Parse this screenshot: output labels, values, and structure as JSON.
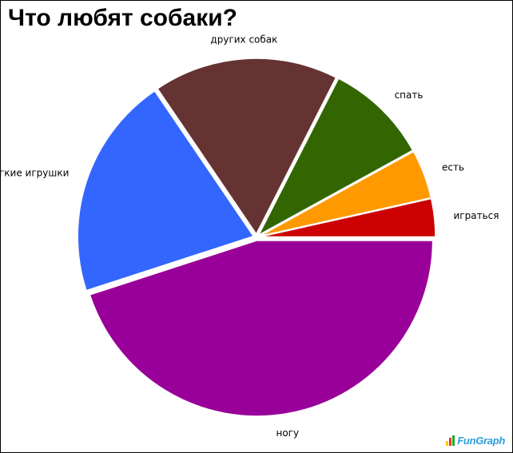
{
  "chart_data": {
    "type": "pie",
    "title": "Что любят собаки?",
    "slices": [
      {
        "label": "ногу",
        "value": 45.0,
        "color": "#990099"
      },
      {
        "label": "мягкие игрушки",
        "value": 20.5,
        "color": "#3366ff"
      },
      {
        "label": "других собак",
        "value": 17.0,
        "color": "#663333"
      },
      {
        "label": "спать",
        "value": 9.5,
        "color": "#336600"
      },
      {
        "label": "есть",
        "value": 4.5,
        "color": "#ff9900"
      },
      {
        "label": "играться",
        "value": 3.5,
        "color": "#cc0000"
      }
    ],
    "start": "3 o'clock",
    "direction": "clockwise",
    "exploded": true,
    "legend": "none"
  },
  "branding": {
    "logo_text": "FunGraph",
    "logo_colors": [
      "#ffcc00",
      "#ee3333",
      "#22aa22",
      "#2a9fd8"
    ]
  }
}
